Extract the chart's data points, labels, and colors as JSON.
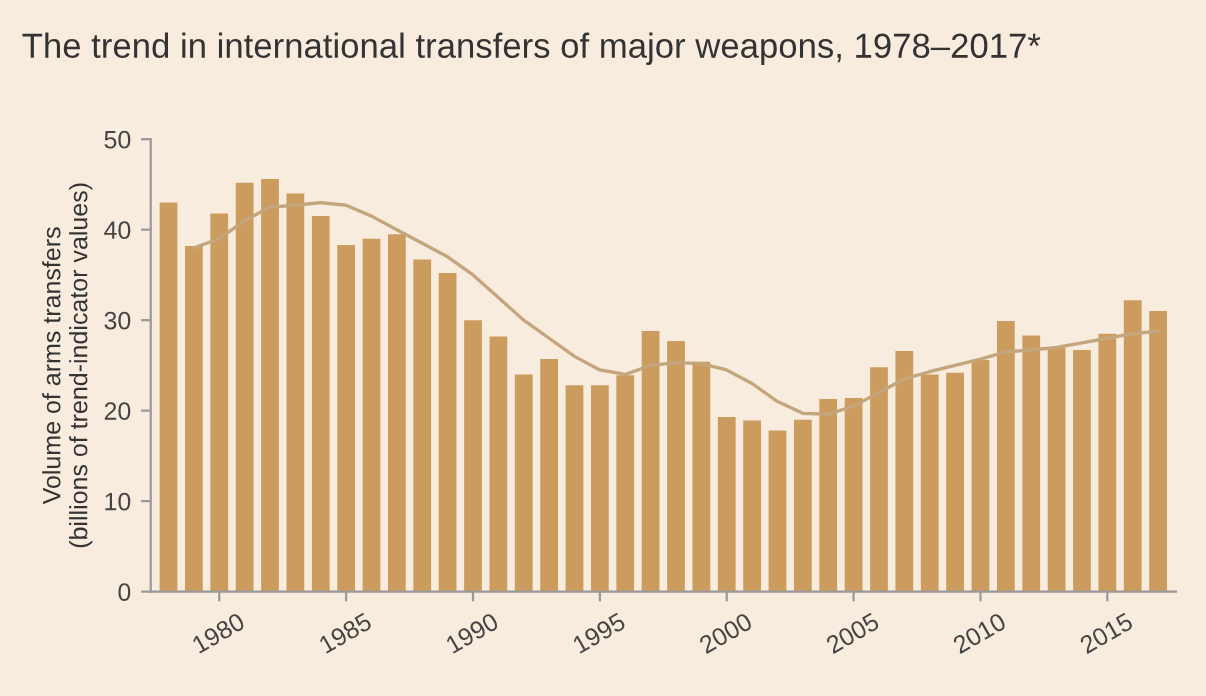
{
  "chart_data": {
    "type": "bar",
    "title": "The trend in international transfers of major weapons, 1978–2017*",
    "ylabel": "Volume of arms transfers\n(billions of trend-indicator values)",
    "x": [
      1978,
      1979,
      1980,
      1981,
      1982,
      1983,
      1984,
      1985,
      1986,
      1987,
      1988,
      1989,
      1990,
      1991,
      1992,
      1993,
      1994,
      1995,
      1996,
      1997,
      1998,
      1999,
      2000,
      2001,
      2002,
      2003,
      2004,
      2005,
      2006,
      2007,
      2008,
      2009,
      2010,
      2011,
      2012,
      2013,
      2014,
      2015,
      2016,
      2017
    ],
    "series": [
      {
        "color": "#cc9c5e",
        "values": [
          43,
          38.2,
          41.8,
          45.2,
          45.6,
          44,
          41.5,
          38.3,
          39,
          39.5,
          36.7,
          35.2,
          30,
          28.2,
          24,
          25.7,
          22.8,
          22.8,
          23.9,
          28.8,
          27.7,
          25.4,
          19.3,
          18.9,
          17.8,
          19,
          21.3,
          21.4,
          24.8,
          26.6,
          24,
          24.2,
          25.6,
          29.9,
          28.3,
          27,
          26.7,
          28.5,
          32.2,
          31
        ]
      },
      {
        "type": "line",
        "color": "#c4a57c",
        "x": [
          1979,
          1980,
          1981,
          1982,
          1983,
          1984,
          1985,
          1986,
          1987,
          1988,
          1989,
          1990,
          1991,
          1992,
          1993,
          1994,
          1995,
          1996,
          1997,
          1998,
          1999,
          2000,
          2001,
          2002,
          2003,
          2004,
          2005,
          2006,
          2007,
          2008,
          2009,
          2010,
          2011,
          2012,
          2013,
          2014,
          2015,
          2016,
          2017
        ],
        "values": [
          38,
          39,
          41,
          42.5,
          42.7,
          43,
          42.7,
          41.5,
          40,
          38.5,
          37,
          35,
          32.5,
          30,
          28,
          26,
          24.5,
          24,
          25,
          25.3,
          25.2,
          24.5,
          23,
          21,
          19.7,
          19.6,
          20.5,
          22,
          23.5,
          24.3,
          25,
          25.7,
          26.5,
          26.7,
          27,
          27.5,
          28,
          28.5,
          28.8
        ]
      }
    ],
    "xlim": [
      1977.3,
      2017.7
    ],
    "xticks": [
      1980,
      1985,
      1990,
      1995,
      2000,
      2005,
      2010,
      2015
    ],
    "ylim": [
      0,
      50
    ],
    "yticks": [
      0,
      10,
      20,
      30,
      40,
      50
    ],
    "grid": false,
    "legend": false
  }
}
